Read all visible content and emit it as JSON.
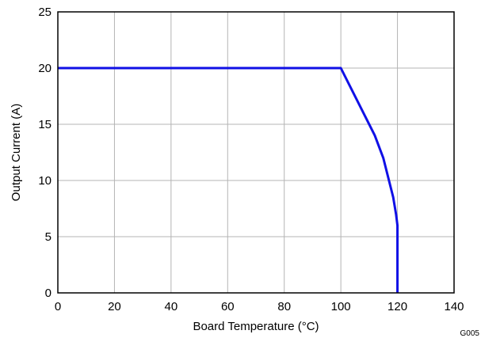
{
  "chart_data": {
    "type": "line",
    "title": "",
    "xlabel": "Board Temperature (°C)",
    "ylabel": "Output Current (A)",
    "xlim": [
      0,
      140
    ],
    "ylim": [
      0,
      25
    ],
    "xticks": [
      0,
      20,
      40,
      60,
      80,
      100,
      120,
      140
    ],
    "yticks": [
      0,
      5,
      10,
      15,
      20,
      25
    ],
    "grid": true,
    "legend": "none",
    "series": [
      {
        "color": "#1010e6",
        "x": [
          0,
          100,
          104,
          108,
          112,
          115,
          117,
          118.5,
          119.5,
          120,
          120
        ],
        "y": [
          20,
          20,
          18,
          16,
          14,
          12,
          10,
          8.5,
          7,
          6,
          0
        ]
      }
    ],
    "figure_id": "G005"
  }
}
